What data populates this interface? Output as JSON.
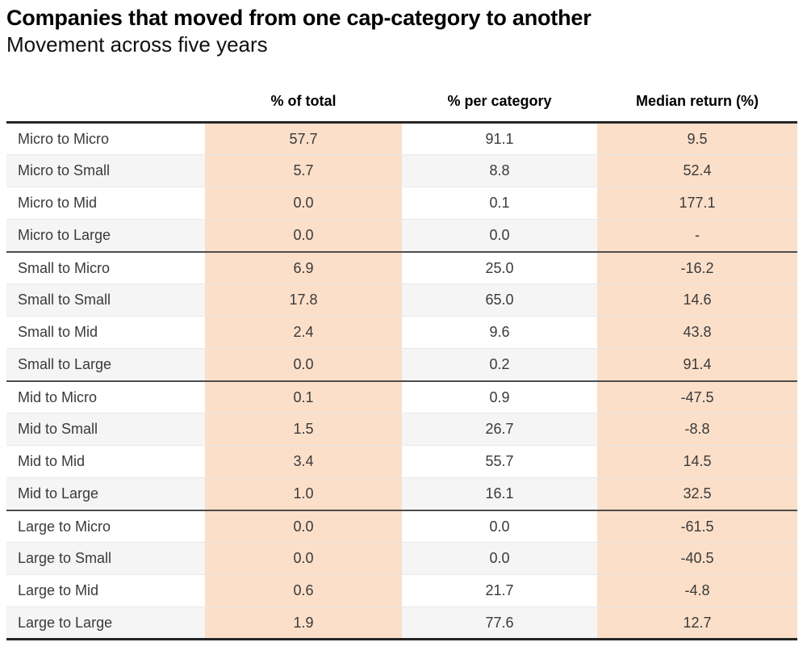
{
  "title": "Companies that moved from one cap-category to another",
  "subtitle": "Movement across five years",
  "colors": {
    "highlight": "#fbdfc9",
    "stripe": "#f5f5f6",
    "border_heavy": "#262626",
    "border_group": "#4d4d4d",
    "border_row": "#e8e8e8"
  },
  "chart_data": {
    "type": "table",
    "title": "Companies that moved from one cap-category to another",
    "subtitle": "Movement across five years",
    "columns": [
      "% of total",
      "% per category",
      "Median return (%)"
    ],
    "row_label_header": "",
    "layout": {
      "highlighted_columns": [
        "% of total",
        "Median return (%)"
      ],
      "row_striping": true,
      "group_separators_after": [
        "Micro to Large",
        "Small to Large",
        "Mid to Large"
      ],
      "value_alignment": "center"
    },
    "row_groups": [
      {
        "name": "Micro",
        "rows": [
          {
            "label": "Micro to Micro",
            "pct_of_total": "57.7",
            "pct_per_category": "91.1",
            "median_return": "9.5"
          },
          {
            "label": "Micro to Small",
            "pct_of_total": "5.7",
            "pct_per_category": "8.8",
            "median_return": "52.4"
          },
          {
            "label": "Micro to Mid",
            "pct_of_total": "0.0",
            "pct_per_category": "0.1",
            "median_return": "177.1"
          },
          {
            "label": "Micro to Large",
            "pct_of_total": "0.0",
            "pct_per_category": "0.0",
            "median_return": "-"
          }
        ]
      },
      {
        "name": "Small",
        "rows": [
          {
            "label": "Small to Micro",
            "pct_of_total": "6.9",
            "pct_per_category": "25.0",
            "median_return": "-16.2"
          },
          {
            "label": "Small to Small",
            "pct_of_total": "17.8",
            "pct_per_category": "65.0",
            "median_return": "14.6"
          },
          {
            "label": "Small to Mid",
            "pct_of_total": "2.4",
            "pct_per_category": "9.6",
            "median_return": "43.8"
          },
          {
            "label": "Small to Large",
            "pct_of_total": "0.0",
            "pct_per_category": "0.2",
            "median_return": "91.4"
          }
        ]
      },
      {
        "name": "Mid",
        "rows": [
          {
            "label": "Mid to Micro",
            "pct_of_total": "0.1",
            "pct_per_category": "0.9",
            "median_return": "-47.5"
          },
          {
            "label": "Mid to Small",
            "pct_of_total": "1.5",
            "pct_per_category": "26.7",
            "median_return": "-8.8"
          },
          {
            "label": "Mid to Mid",
            "pct_of_total": "3.4",
            "pct_per_category": "55.7",
            "median_return": "14.5"
          },
          {
            "label": "Mid to Large",
            "pct_of_total": "1.0",
            "pct_per_category": "16.1",
            "median_return": "32.5"
          }
        ]
      },
      {
        "name": "Large",
        "rows": [
          {
            "label": "Large to Micro",
            "pct_of_total": "0.0",
            "pct_per_category": "0.0",
            "median_return": "-61.5"
          },
          {
            "label": "Large to Small",
            "pct_of_total": "0.0",
            "pct_per_category": "0.0",
            "median_return": "-40.5"
          },
          {
            "label": "Large to Mid",
            "pct_of_total": "0.6",
            "pct_per_category": "21.7",
            "median_return": "-4.8"
          },
          {
            "label": "Large to Large",
            "pct_of_total": "1.9",
            "pct_per_category": "77.6",
            "median_return": "12.7"
          }
        ]
      }
    ]
  }
}
